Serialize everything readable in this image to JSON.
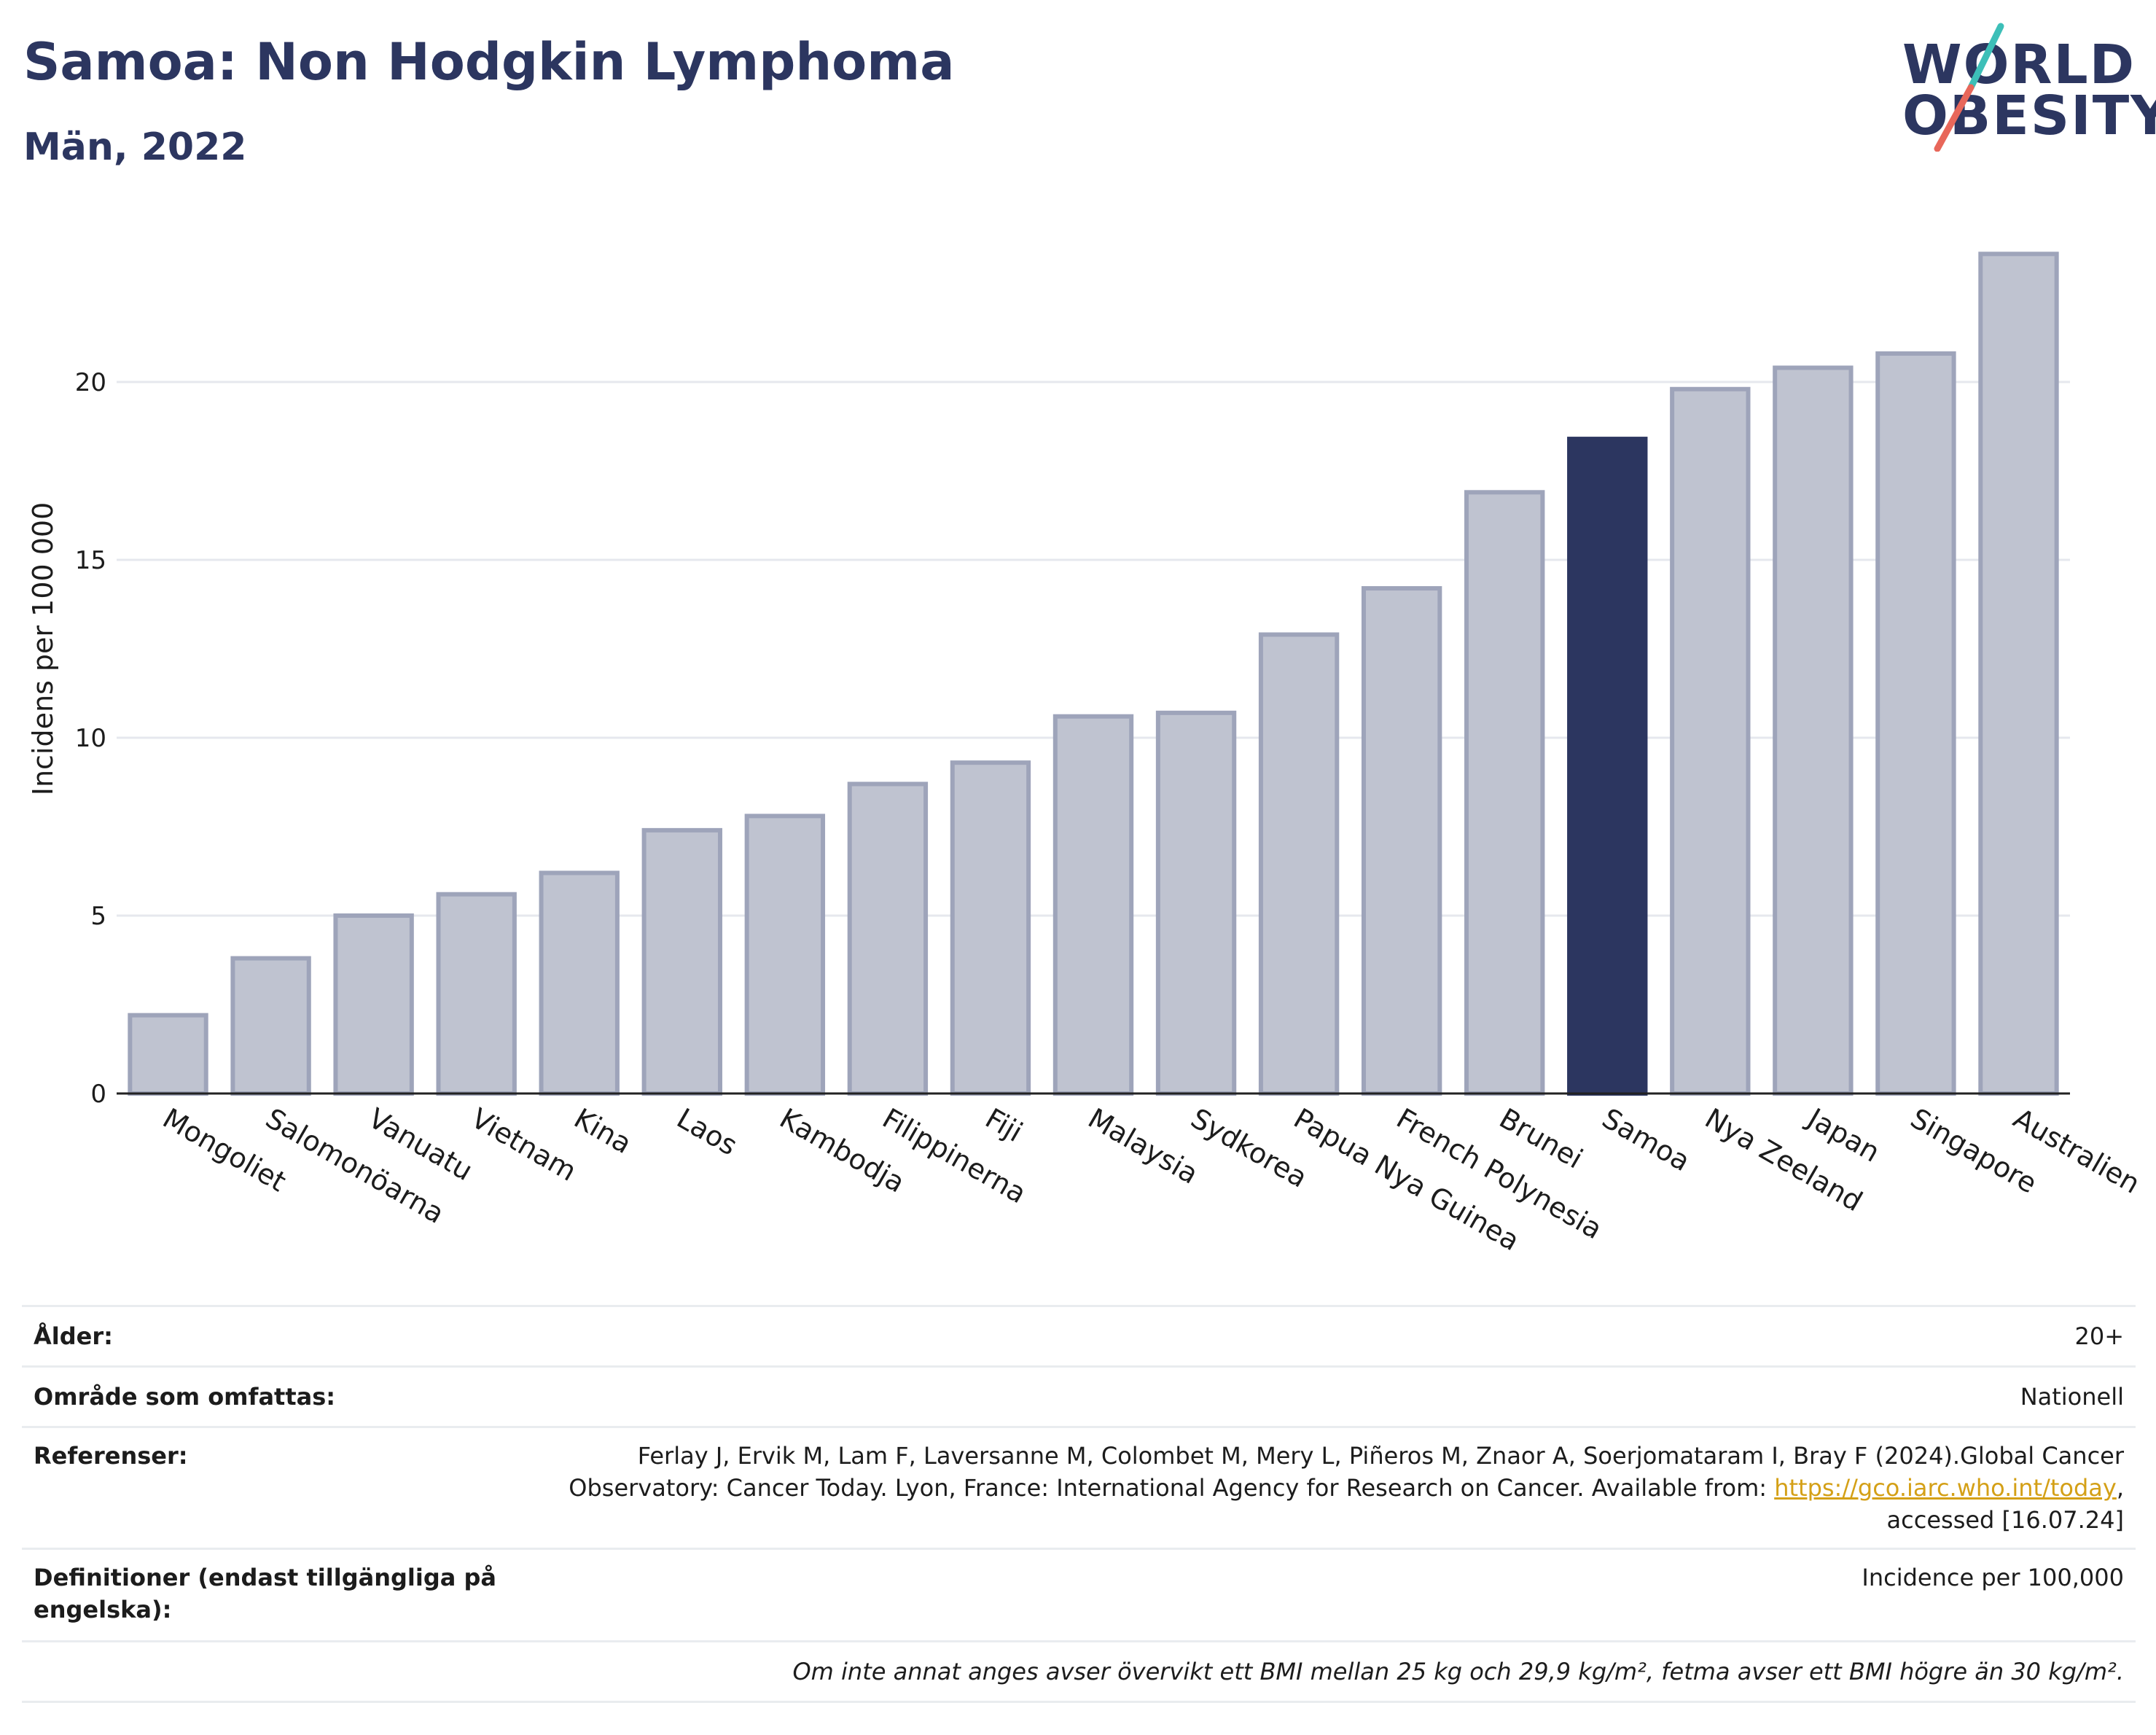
{
  "header": {
    "title": "Samoa: Non Hodgkin Lymphoma",
    "subtitle": "Män, 2022"
  },
  "logo": {
    "line1": "WORLD",
    "line2": "OBESITY",
    "colors": {
      "text": "#2c3660",
      "slash_top": "#3dbfb8",
      "slash_bottom": "#e8675a"
    }
  },
  "chart_data": {
    "type": "bar",
    "categories": [
      "Mongoliet",
      "Salomonöarna",
      "Vanuatu",
      "Vietnam",
      "Kina",
      "Laos",
      "Kambodja",
      "Filippinerna",
      "Fiji",
      "Malaysia",
      "Sydkorea",
      "Papua Nya Guinea",
      "French Polynesia",
      "Brunei",
      "Samoa",
      "Nya Zeeland",
      "Japan",
      "Singapore",
      "Australien"
    ],
    "values": [
      2.2,
      3.8,
      5.0,
      5.6,
      6.2,
      7.4,
      7.8,
      8.7,
      9.3,
      10.6,
      10.7,
      12.9,
      14.2,
      16.9,
      18.4,
      19.8,
      20.4,
      20.8,
      23.6
    ],
    "highlight": "Samoa",
    "ylabel": "Incidens per 100 000",
    "xlabel": "",
    "ylim": [
      0,
      25
    ],
    "yticks": [
      0,
      5,
      10,
      15,
      20
    ],
    "grid": true,
    "colors": {
      "bar": "#bfc3d0",
      "bar_edge": "#9ea4ba",
      "highlight": "#2c3660",
      "grid": "#e6e8ee",
      "axis": "#222222"
    }
  },
  "meta": {
    "age_label": "Ålder:",
    "age_value": "20+",
    "area_label": "Område som omfattas:",
    "area_value": "Nationell",
    "refs_label": "Referenser:",
    "refs_line1": "Ferlay J, Ervik M, Lam F, Laversanne M, Colombet M, Mery L, Piñeros M, Znaor A, Soerjomataram I, Bray F (2024).Global Cancer",
    "refs_line2_pre": "Observatory: Cancer Today. Lyon, France: International Agency for Research on Cancer. Available from: ",
    "refs_link": "https://gco.iarc.who.int/today",
    "refs_line2_post": ",",
    "refs_line3": "accessed [16.07.24]",
    "defs_label": "Definitioner (endast tillgängliga på engelska):",
    "defs_value": "Incidence per 100,000",
    "note": "Om inte annat anges avser övervikt ett BMI mellan 25 kg och 29,9 kg/m², fetma avser ett BMI högre än 30 kg/m²."
  }
}
